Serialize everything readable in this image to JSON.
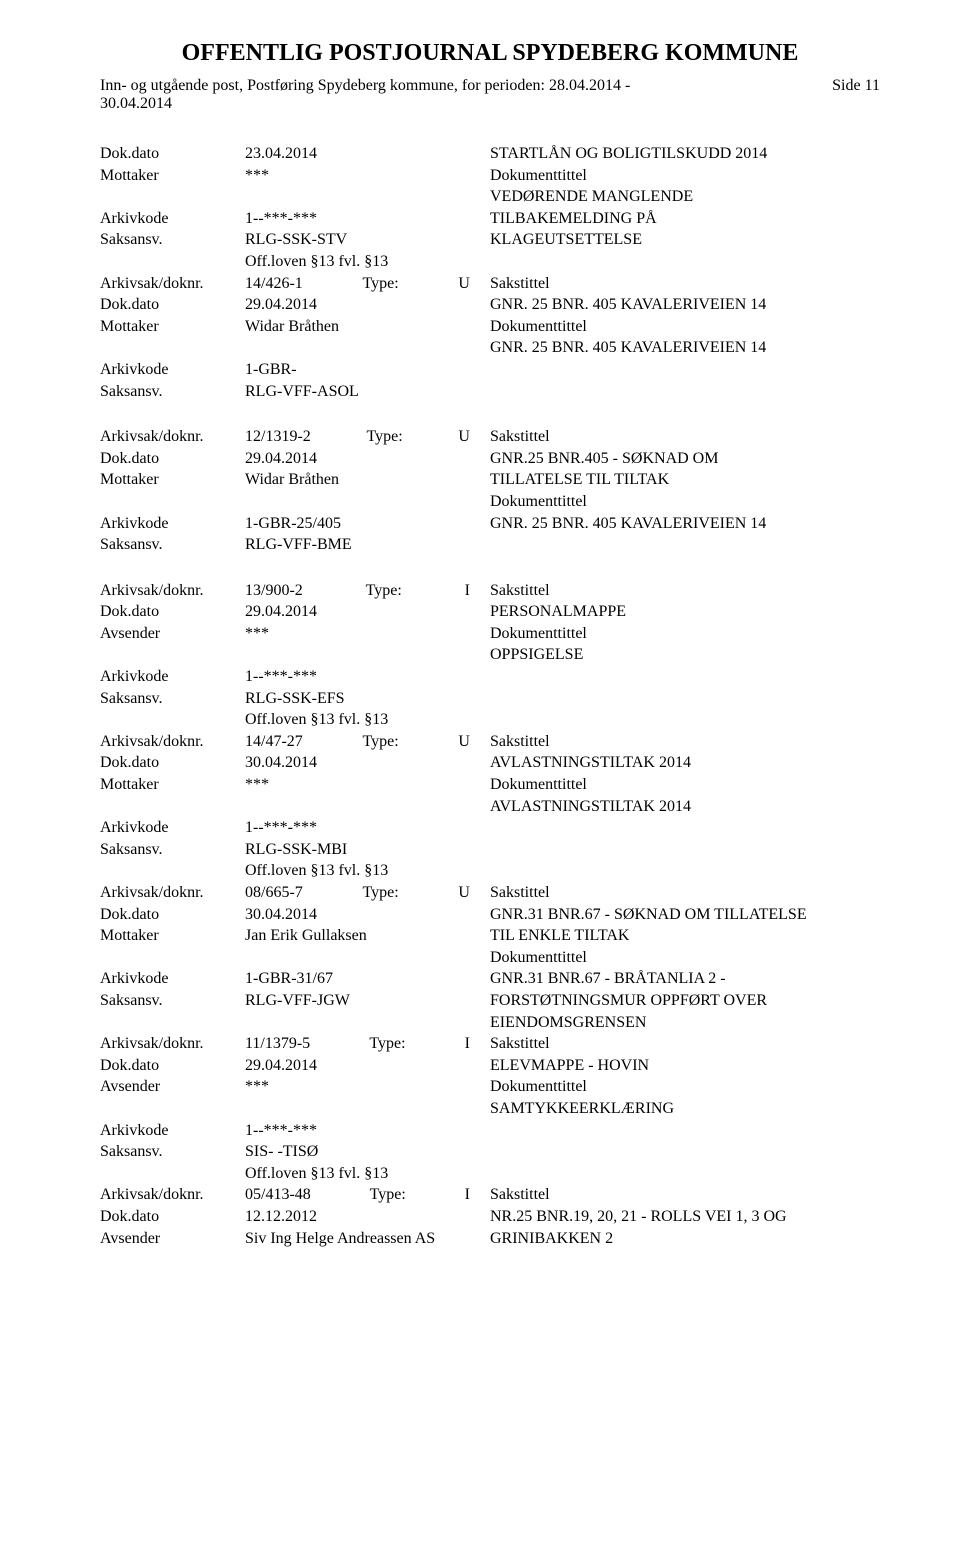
{
  "title": "OFFENTLIG POSTJOURNAL SPYDEBERG KOMMUNE",
  "subtitle": "Inn- og utgående post, Postføring Spydeberg kommune, for perioden: 28.04.2014 - 30.04.2014",
  "side": "Side 11",
  "labels": {
    "dokdato": "Dok.dato",
    "mottaker": "Mottaker",
    "avsender": "Avsender",
    "arkivkode": "Arkivkode",
    "saksansv": "Saksansv.",
    "arkivsak": "Arkivsak/doknr.",
    "type": "Type:",
    "sakstittel": "Sakstittel",
    "dokumenttittel": "Dokumenttittel"
  },
  "entries": [
    {
      "head_dokdato": "23.04.2014",
      "head_right": "STARTLÅN OG BOLIGTILSKUDD 2014",
      "party_label": "Mottaker",
      "party": "***",
      "arkivkode": "1--***-***",
      "saksansv": "RLG-SSK-STV",
      "offloven": "Off.loven §13  fvl. §13",
      "doktext_lines": [
        "VEDØRENDE MANGLENDE",
        "TILBAKEMELDING PÅ",
        "KLAGEUTSETTELSE"
      ],
      "no_bottom_margin": true
    },
    {
      "arkivsak": "14/426-1",
      "type": "U",
      "dokdato": "29.04.2014",
      "party_label": "Mottaker",
      "party": "Widar Bråthen",
      "arkivkode": "1-GBR-",
      "saksansv": "RLG-VFF-ASOL",
      "sak_lines": [
        "GNR. 25 BNR. 405 KAVALERIVEIEN 14"
      ],
      "doktext_lines": [
        "GNR. 25 BNR. 405 KAVALERIVEIEN 14"
      ]
    },
    {
      "arkivsak": "12/1319-2",
      "type": "U",
      "dokdato": "29.04.2014",
      "party_label": "Mottaker",
      "party": "Widar Bråthen",
      "arkivkode": "1-GBR-25/405",
      "saksansv": "RLG-VFF-BME",
      "sak_lines": [
        "GNR.25 BNR.405 - SØKNAD OM",
        "TILLATELSE TIL TILTAK"
      ],
      "doktext_lines": [
        "GNR. 25 BNR. 405 KAVALERIVEIEN 14"
      ]
    },
    {
      "arkivsak": "13/900-2",
      "type": "I",
      "dokdato": "29.04.2014",
      "party_label": "Avsender",
      "party": "***",
      "arkivkode": "1--***-***",
      "saksansv": "RLG-SSK-EFS",
      "offloven": "Off.loven §13  fvl. §13",
      "sak_lines": [
        "PERSONALMAPPE"
      ],
      "doktext_lines": [
        "OPPSIGELSE"
      ],
      "no_bottom_margin": true
    },
    {
      "arkivsak": "14/47-27",
      "type": "U",
      "dokdato": "30.04.2014",
      "party_label": "Mottaker",
      "party": "***",
      "arkivkode": "1--***-***",
      "saksansv": "RLG-SSK-MBI",
      "offloven": "Off.loven §13  fvl. §13",
      "sak_lines": [
        "AVLASTNINGSTILTAK 2014"
      ],
      "doktext_lines": [
        "AVLASTNINGSTILTAK 2014"
      ],
      "no_bottom_margin": true
    },
    {
      "arkivsak": "08/665-7",
      "type": "U",
      "dokdato": "30.04.2014",
      "party_label": "Mottaker",
      "party": "Jan Erik Gullaksen",
      "arkivkode": "1-GBR-31/67",
      "saksansv": "RLG-VFF-JGW",
      "sak_lines": [
        "GNR.31 BNR.67 - SØKNAD OM TILLATELSE",
        "TIL ENKLE TILTAK"
      ],
      "doktext_lines": [
        "GNR.31 BNR.67 - BRÅTANLIA 2 -",
        "FORSTØTNINGSMUR OPPFØRT OVER",
        "EIENDOMSGRENSEN"
      ],
      "no_bottom_margin": true
    },
    {
      "arkivsak": "11/1379-5",
      "type": "I",
      "dokdato": "29.04.2014",
      "party_label": "Avsender",
      "party": "***",
      "arkivkode": "1--***-***",
      "saksansv": "SIS- -TISØ",
      "offloven": "Off.loven §13  fvl. §13",
      "sak_lines": [
        "ELEVMAPPE - HOVIN"
      ],
      "doktext_lines": [
        "SAMTYKKEERKLÆRING"
      ],
      "no_bottom_margin": true
    },
    {
      "arkivsak": "05/413-48",
      "type": "I",
      "dokdato": "12.12.2012",
      "party_label": "Avsender",
      "party": "Siv Ing Helge Andreassen AS",
      "sak_lines": [
        "NR.25 BNR.19, 20, 21 - ROLLS VEI 1, 3 OG",
        "GRINIBAKKEN 2"
      ],
      "partial": true
    }
  ]
}
